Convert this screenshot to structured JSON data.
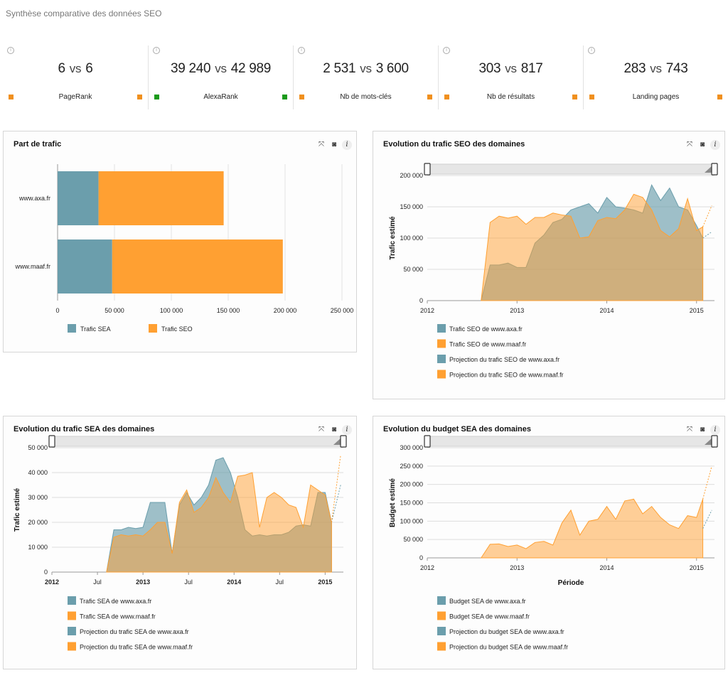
{
  "page_title": "Synthèse comparative des données SEO",
  "vs_word": "vs",
  "colors": {
    "sea": "#6b9eac",
    "seo": "#ffa032",
    "green": "#1a9a1a"
  },
  "icons": [
    "expand-icon",
    "camera-icon",
    "info-icon"
  ],
  "tools": {
    "expand": "⤧",
    "camera": "◙",
    "info": "i"
  },
  "kpis": [
    {
      "a": "6",
      "b": "6",
      "label": "PageRank",
      "color": "#f0901e"
    },
    {
      "a": "39 240",
      "b": "42 989",
      "label": "AlexaRank",
      "color": "#1a9a1a"
    },
    {
      "a": "2 531",
      "b": "3 600",
      "label": "Nb de mots-clés",
      "color": "#f0901e"
    },
    {
      "a": "303",
      "b": "817",
      "label": "Nb de résultats",
      "color": "#f0901e"
    },
    {
      "a": "283",
      "b": "743",
      "label": "Landing pages",
      "color": "#f0901e"
    }
  ],
  "chart_data": [
    {
      "id": "part",
      "type": "bar",
      "orientation": "horizontal",
      "stacked": true,
      "title": "Part de trafic",
      "categories": [
        "www.axa.fr",
        "www.maaf.fr"
      ],
      "series": [
        {
          "name": "Trafic SEA",
          "color": "#6b9eac",
          "values": [
            36000,
            48000
          ]
        },
        {
          "name": "Trafic SEO",
          "color": "#ffa032",
          "values": [
            110000,
            150000
          ]
        }
      ],
      "xlim": [
        0,
        250000
      ],
      "ticks": [
        0,
        50000,
        100000,
        150000,
        200000,
        250000
      ],
      "tick_labels": [
        "0",
        "50 000",
        "100 000",
        "150 000",
        "200 000",
        "250 000"
      ]
    },
    {
      "id": "seo",
      "type": "area",
      "title": "Evolution du trafic SEO des domaines",
      "ylabel": "Trafic estimé",
      "xlabel": "",
      "xlim": [
        2012.0,
        2015.2
      ],
      "ylim": [
        0,
        200000
      ],
      "yticks": [
        0,
        50000,
        100000,
        150000,
        200000
      ],
      "ytick_labels": [
        "0",
        "50 000",
        "100 000",
        "150 000",
        "200 000"
      ],
      "xticks": [
        2012,
        2013,
        2014,
        2015
      ],
      "xtick_labels": [
        "2012",
        "2013",
        "2014",
        "2015"
      ],
      "x": [
        2012.6,
        2012.7,
        2012.8,
        2012.9,
        2013.0,
        2013.1,
        2013.2,
        2013.3,
        2013.4,
        2013.5,
        2013.6,
        2013.7,
        2013.8,
        2013.9,
        2014.0,
        2014.1,
        2014.2,
        2014.3,
        2014.4,
        2014.5,
        2014.6,
        2014.7,
        2014.8,
        2014.9,
        2015.0,
        2015.07
      ],
      "series": [
        {
          "name": "Trafic SEO de www.axa.fr",
          "color": "#6b9eac",
          "values": [
            0,
            57000,
            57000,
            60000,
            53000,
            53000,
            92000,
            105000,
            125000,
            130000,
            145000,
            150000,
            155000,
            140000,
            165000,
            150000,
            148000,
            145000,
            140000,
            185000,
            160000,
            180000,
            150000,
            145000,
            120000,
            100000
          ]
        },
        {
          "name": "Trafic SEO de www.maaf.fr",
          "color": "#ffa032",
          "values": [
            0,
            125000,
            135000,
            132000,
            135000,
            122000,
            133000,
            133000,
            140000,
            137000,
            135000,
            100000,
            102000,
            128000,
            133000,
            131000,
            145000,
            170000,
            165000,
            145000,
            112000,
            102000,
            115000,
            163000,
            112000,
            118000
          ]
        }
      ],
      "projections": [
        {
          "name": "Projection du trafic SEO de www.axa.fr",
          "color": "#6b9eac",
          "x": [
            2015.07,
            2015.17
          ],
          "values": [
            100000,
            110000
          ]
        },
        {
          "name": "Projection du trafic SEO de www.maaf.fr",
          "color": "#ffa032",
          "x": [
            2015.07,
            2015.17
          ],
          "values": [
            118000,
            152000
          ]
        }
      ]
    },
    {
      "id": "sea",
      "type": "area",
      "title": "Evolution du trafic SEA des domaines",
      "ylabel": "Trafic estimé",
      "xlabel": "",
      "xlim": [
        2012.0,
        2015.2
      ],
      "ylim": [
        0,
        50000
      ],
      "yticks": [
        0,
        10000,
        20000,
        30000,
        40000,
        50000
      ],
      "ytick_labels": [
        "0",
        "10 000",
        "20 000",
        "30 000",
        "40 000",
        "50 000"
      ],
      "xticks": [
        2012,
        2012.5,
        2013,
        2013.5,
        2014,
        2014.5,
        2015
      ],
      "xtick_labels": [
        "2012",
        "Jul",
        "2013",
        "Jul",
        "2014",
        "Jul",
        "2015"
      ],
      "x": [
        2012.6,
        2012.68,
        2012.76,
        2012.84,
        2012.92,
        2013.0,
        2013.08,
        2013.16,
        2013.24,
        2013.32,
        2013.4,
        2013.48,
        2013.56,
        2013.64,
        2013.72,
        2013.8,
        2013.88,
        2013.96,
        2014.04,
        2014.12,
        2014.2,
        2014.28,
        2014.36,
        2014.44,
        2014.52,
        2014.6,
        2014.68,
        2014.76,
        2014.84,
        2014.92,
        2015.0,
        2015.07
      ],
      "series": [
        {
          "name": "Trafic SEA de www.axa.fr",
          "color": "#6b9eac",
          "values": [
            0,
            17000,
            17000,
            18000,
            17500,
            18000,
            28000,
            28000,
            28000,
            7500,
            27000,
            32000,
            27000,
            30000,
            35000,
            45000,
            46000,
            40000,
            30000,
            17000,
            14500,
            15000,
            14500,
            15000,
            15000,
            16000,
            18500,
            19000,
            18500,
            32000,
            32000,
            20000
          ]
        },
        {
          "name": "Trafic SEA de www.maaf.fr",
          "color": "#ffa032",
          "values": [
            0,
            14000,
            15000,
            14500,
            15000,
            14500,
            17000,
            20000,
            20000,
            7500,
            28000,
            33000,
            24000,
            26000,
            30000,
            38000,
            32000,
            28000,
            38500,
            39000,
            40000,
            18000,
            30000,
            32000,
            30000,
            27000,
            26000,
            18000,
            35000,
            33000,
            31000,
            20000
          ]
        }
      ],
      "projections": [
        {
          "name": "Projection du trafic SEA de www.axa.fr",
          "color": "#6b9eac",
          "x": [
            2015.07,
            2015.17
          ],
          "values": [
            20000,
            35000
          ]
        },
        {
          "name": "Projection du trafic SEA de www.maaf.fr",
          "color": "#ffa032",
          "x": [
            2015.07,
            2015.17
          ],
          "values": [
            20000,
            47000
          ]
        }
      ]
    },
    {
      "id": "budget",
      "type": "area",
      "title": "Evolution du budget SEA des domaines",
      "ylabel": "Budget estimé",
      "xlabel": "Période",
      "xlim": [
        2012.0,
        2015.2
      ],
      "ylim": [
        0,
        300000
      ],
      "yticks": [
        0,
        50000,
        100000,
        150000,
        200000,
        250000,
        300000
      ],
      "ytick_labels": [
        "0",
        "50 000",
        "100 000",
        "150 000",
        "200 000",
        "250 000",
        "300 000"
      ],
      "xticks": [
        2012,
        2013,
        2014,
        2015
      ],
      "xtick_labels": [
        "2012",
        "2013",
        "2014",
        "2015"
      ],
      "x": [
        2012.6,
        2012.7,
        2012.8,
        2012.9,
        2013.0,
        2013.1,
        2013.2,
        2013.3,
        2013.4,
        2013.5,
        2013.6,
        2013.7,
        2013.8,
        2013.9,
        2014.0,
        2014.1,
        2014.2,
        2014.3,
        2014.4,
        2014.5,
        2014.6,
        2014.7,
        2014.8,
        2014.9,
        2015.0,
        2015.07
      ],
      "series": [
        {
          "name": "Budget SEA de www.axa.fr",
          "color": "#6b9eac",
          "values": [
            0,
            0,
            0,
            0,
            0,
            0,
            0,
            0,
            0,
            0,
            0,
            0,
            0,
            0,
            0,
            0,
            0,
            0,
            0,
            0,
            0,
            0,
            0,
            0,
            0,
            0
          ]
        },
        {
          "name": "Budget SEA de www.maaf.fr",
          "color": "#ffa032",
          "values": [
            0,
            37000,
            38000,
            31000,
            35000,
            25000,
            42000,
            45000,
            35000,
            95000,
            130000,
            62000,
            100000,
            105000,
            140000,
            105000,
            155000,
            160000,
            120000,
            140000,
            110000,
            90000,
            80000,
            115000,
            110000,
            160000
          ]
        }
      ],
      "projections": [
        {
          "name": "Projection du budget SEA de www.axa.fr",
          "color": "#6b9eac",
          "x": [
            2015.07,
            2015.17
          ],
          "values": [
            80000,
            130000
          ]
        },
        {
          "name": "Projection du budget SEA de www.maaf.fr",
          "color": "#ffa032",
          "x": [
            2015.07,
            2015.17
          ],
          "values": [
            160000,
            250000
          ]
        }
      ]
    }
  ]
}
